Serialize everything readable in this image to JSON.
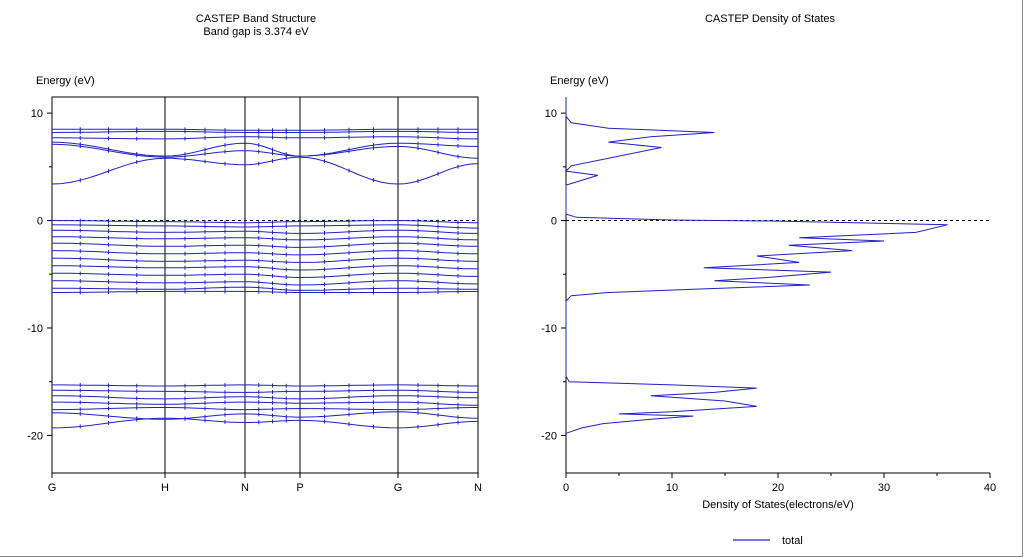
{
  "chart_data": [
    {
      "type": "line",
      "title": "CASTEP Band Structure",
      "subtitle": "Band gap is 3.374 eV",
      "ylabel": "Energy (eV)",
      "xlabel": "",
      "ylim": [
        -23.5,
        11.5
      ],
      "yticks": [
        10,
        0,
        -10,
        -20
      ],
      "kpoints": [
        "G",
        "H",
        "N",
        "P",
        "G",
        "N"
      ],
      "band_gap_eV": 3.374,
      "fermi_level": 0,
      "line_color": "#2020c8",
      "bands": [
        [
          8.5,
          8.5,
          8.4,
          8.4,
          8.5,
          8.5
        ],
        [
          8.2,
          8.3,
          8.2,
          8.2,
          8.3,
          8.2
        ],
        [
          7.7,
          7.6,
          7.8,
          7.7,
          7.8,
          7.6
        ],
        [
          7.3,
          6.0,
          7.2,
          6.0,
          7.2,
          6.9
        ],
        [
          7.1,
          5.9,
          6.5,
          6.0,
          6.9,
          5.8
        ],
        [
          3.4,
          5.8,
          5.2,
          5.9,
          3.4,
          5.3
        ],
        [
          0.0,
          -0.1,
          -0.2,
          -0.1,
          0.0,
          -0.2
        ],
        [
          -0.4,
          -0.5,
          -0.6,
          -0.5,
          -0.4,
          -0.7
        ],
        [
          -0.9,
          -1.1,
          -1.0,
          -1.2,
          -0.9,
          -1.2
        ],
        [
          -1.5,
          -1.7,
          -1.6,
          -1.8,
          -1.5,
          -1.8
        ],
        [
          -2.1,
          -2.4,
          -2.3,
          -2.5,
          -2.1,
          -2.4
        ],
        [
          -2.8,
          -3.1,
          -3.0,
          -3.2,
          -2.8,
          -3.1
        ],
        [
          -3.5,
          -3.8,
          -3.7,
          -3.9,
          -3.5,
          -3.8
        ],
        [
          -4.2,
          -4.4,
          -4.3,
          -4.6,
          -4.2,
          -4.5
        ],
        [
          -4.9,
          -5.1,
          -5.0,
          -5.3,
          -4.9,
          -5.2
        ],
        [
          -5.6,
          -5.8,
          -5.7,
          -6.0,
          -5.6,
          -5.9
        ],
        [
          -6.3,
          -6.4,
          -6.2,
          -6.5,
          -6.3,
          -6.4
        ],
        [
          -6.7,
          -6.6,
          -6.6,
          -6.7,
          -6.7,
          -6.6
        ],
        [
          -15.3,
          -15.4,
          -15.3,
          -15.4,
          -15.3,
          -15.4
        ],
        [
          -15.8,
          -15.9,
          -16.0,
          -15.9,
          -15.8,
          -16.0
        ],
        [
          -16.3,
          -16.6,
          -16.4,
          -16.6,
          -16.3,
          -16.5
        ],
        [
          -16.9,
          -17.1,
          -16.9,
          -17.0,
          -16.9,
          -17.2
        ],
        [
          -17.6,
          -17.4,
          -17.6,
          -17.5,
          -17.6,
          -17.4
        ],
        [
          -17.9,
          -18.5,
          -18.0,
          -18.3,
          -17.8,
          -18.4
        ],
        [
          -19.3,
          -18.4,
          -18.8,
          -18.6,
          -19.3,
          -18.7
        ]
      ]
    },
    {
      "type": "line",
      "title": "CASTEP Density of States",
      "ylabel": "Energy (eV)",
      "xlabel": "Density of States(electrons/eV)",
      "xlim": [
        0,
        40
      ],
      "ylim": [
        -23.5,
        11.5
      ],
      "xticks": [
        0,
        10,
        20,
        30,
        40
      ],
      "yticks": [
        10,
        0,
        -10,
        -20
      ],
      "fermi_level": 0,
      "legend": "total",
      "legend_position": "bottom-center",
      "line_color": "#2020c8",
      "series": [
        {
          "name": "total",
          "points": [
            [
              0,
              -19.8
            ],
            [
              1.5,
              -19.3
            ],
            [
              3.5,
              -18.9
            ],
            [
              8,
              -18.5
            ],
            [
              12,
              -18.2
            ],
            [
              5,
              -18.0
            ],
            [
              10,
              -17.8
            ],
            [
              18,
              -17.3
            ],
            [
              15,
              -16.8
            ],
            [
              8,
              -16.3
            ],
            [
              14,
              -16.0
            ],
            [
              18,
              -15.6
            ],
            [
              10,
              -15.3
            ],
            [
              0.3,
              -15.0
            ],
            [
              0,
              -14.5
            ],
            [
              0,
              -7.5
            ],
            [
              0.5,
              -7.0
            ],
            [
              4,
              -6.7
            ],
            [
              12,
              -6.4
            ],
            [
              23,
              -6.0
            ],
            [
              14,
              -5.6
            ],
            [
              19,
              -5.3
            ],
            [
              25,
              -4.8
            ],
            [
              13,
              -4.4
            ],
            [
              22,
              -3.9
            ],
            [
              18,
              -3.3
            ],
            [
              27,
              -2.8
            ],
            [
              21,
              -2.3
            ],
            [
              30,
              -1.9
            ],
            [
              22,
              -1.6
            ],
            [
              33,
              -1.1
            ],
            [
              36,
              -0.4
            ],
            [
              20,
              -0.05
            ],
            [
              10,
              0.05
            ],
            [
              1,
              0.3
            ],
            [
              0,
              0.6
            ],
            [
              0,
              3.3
            ],
            [
              3,
              4.2
            ],
            [
              0,
              4.6
            ],
            [
              0.5,
              5.1
            ],
            [
              5,
              6.0
            ],
            [
              9,
              6.8
            ],
            [
              4,
              7.3
            ],
            [
              8,
              7.8
            ],
            [
              14,
              8.2
            ],
            [
              4,
              8.6
            ],
            [
              0.5,
              9.1
            ],
            [
              0,
              9.7
            ],
            [
              0,
              11.5
            ]
          ]
        }
      ]
    }
  ]
}
